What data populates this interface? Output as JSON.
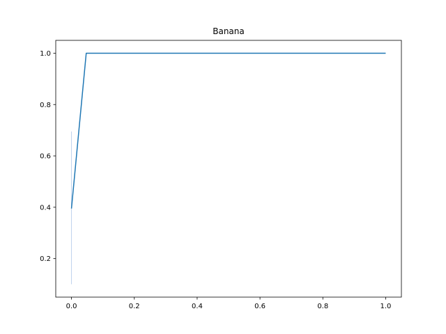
{
  "chart_data": {
    "type": "line",
    "title": "Banana",
    "xlabel": "",
    "ylabel": "",
    "xlim": [
      -0.05,
      1.05
    ],
    "ylim": [
      0.05,
      1.05
    ],
    "x_ticks": [
      0.0,
      0.2,
      0.4,
      0.6,
      0.8,
      1.0
    ],
    "x_tick_labels": [
      "0.0",
      "0.2",
      "0.4",
      "0.6",
      "0.8",
      "1.0"
    ],
    "y_ticks": [
      0.2,
      0.4,
      0.6,
      0.8,
      1.0
    ],
    "y_tick_labels": [
      "0.2",
      "0.4",
      "0.6",
      "0.8",
      "1.0"
    ],
    "grid": false,
    "legend": "none",
    "series": [
      {
        "x": [
          0.0,
          0.047,
          1.0
        ],
        "y": [
          0.395,
          1.0,
          1.0
        ],
        "color": "#1f77b4"
      }
    ],
    "error_band": {
      "x": 0.0,
      "y_low": 0.1,
      "y_high": 0.695,
      "color": "#aec7e8"
    }
  }
}
